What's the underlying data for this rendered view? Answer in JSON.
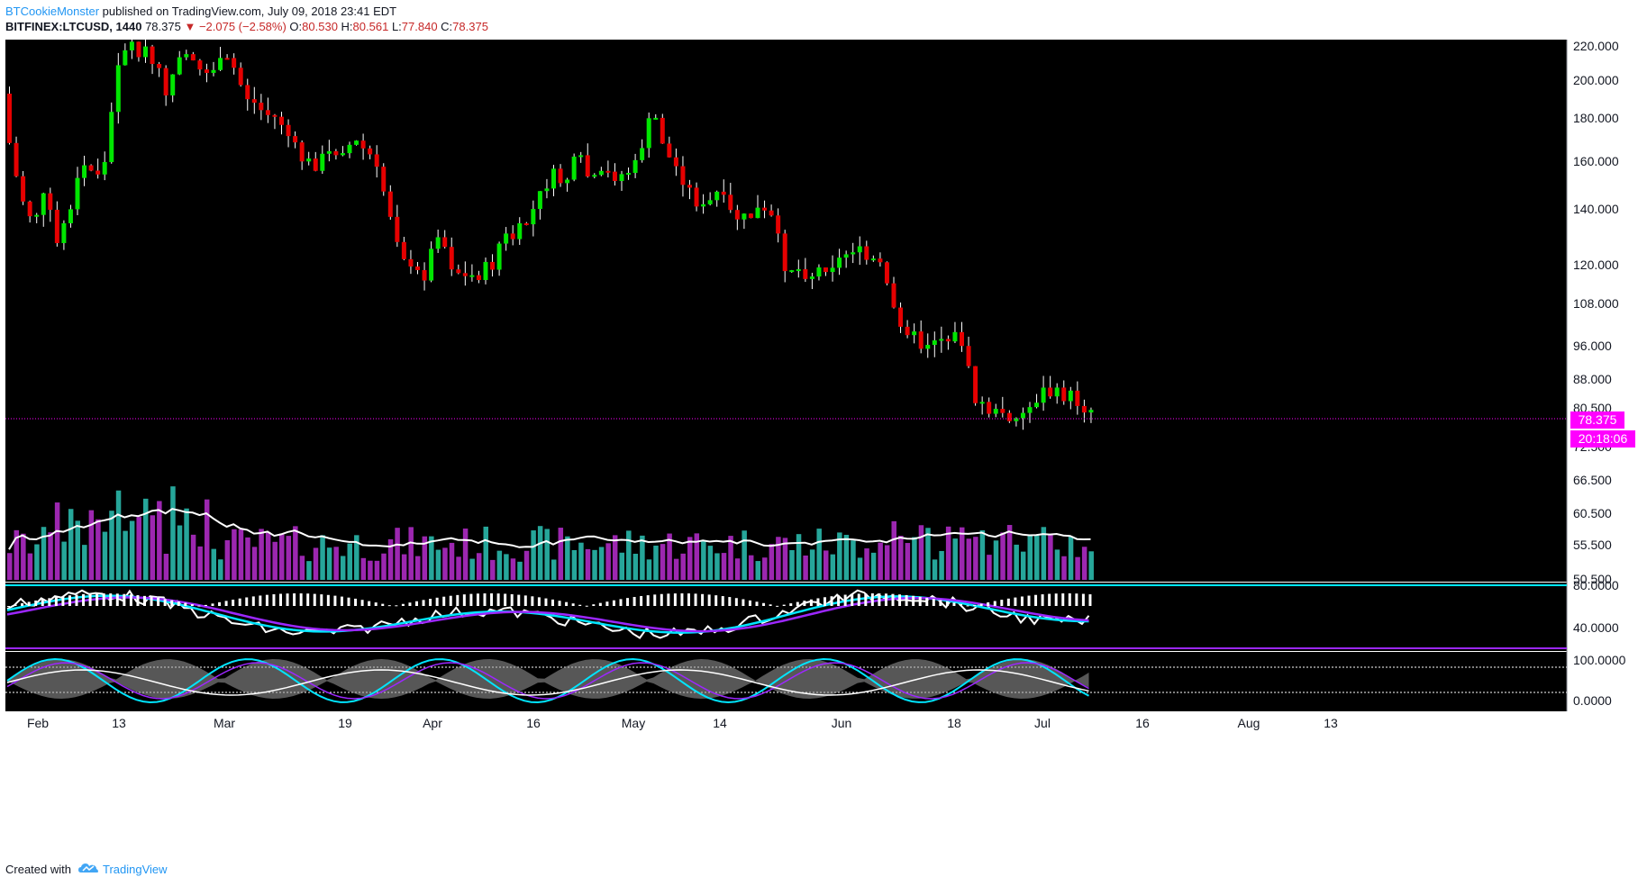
{
  "header": {
    "author": "BTCookieMonster",
    "published_text": "published on TradingView.com, July 09, 2018 23:41 EDT",
    "symbol": "BITFINEX:LTCUSD, 1440",
    "last": "78.375",
    "change": "▼ −2.075 (−2.58%)",
    "open_label": "O:",
    "open": "80.530",
    "high_label": "H:",
    "high": "80.561",
    "low_label": "L:",
    "low": "77.840",
    "close_label": "C:",
    "close": "78.375"
  },
  "price_axis": {
    "ticks": [
      "220.000",
      "200.000",
      "180.000",
      "160.000",
      "140.000",
      "120.000",
      "108.000",
      "96.000",
      "88.000",
      "80.500",
      "72.500",
      "66.500",
      "60.500",
      "55.500",
      "50.500"
    ],
    "last_price_label": "78.375",
    "countdown_label": "20:18:06"
  },
  "indicator1_axis": {
    "ticks": [
      "80.0000",
      "40.0000"
    ]
  },
  "indicator2_axis": {
    "ticks": [
      "100.0000",
      "0.0000"
    ]
  },
  "time_axis": {
    "ticks": [
      "Feb",
      "13",
      "Mar",
      "19",
      "Apr",
      "16",
      "May",
      "14",
      "Jun",
      "18",
      "Jul",
      "16",
      "Aug",
      "13"
    ]
  },
  "colors": {
    "background": "#000000",
    "bull": "#00e600",
    "bear": "#e60000",
    "volume_up": "#26a69a",
    "volume_down": "#9c27b0",
    "last_price": "#ff00ff",
    "rsi_line": "#00e5ff",
    "rsi_signal": "#9c27ff",
    "band": "#00e5ff"
  },
  "footer": {
    "created_with": "Created with",
    "brand": "TradingView",
    "logo_icon": "tradingview-cloud-icon"
  }
}
